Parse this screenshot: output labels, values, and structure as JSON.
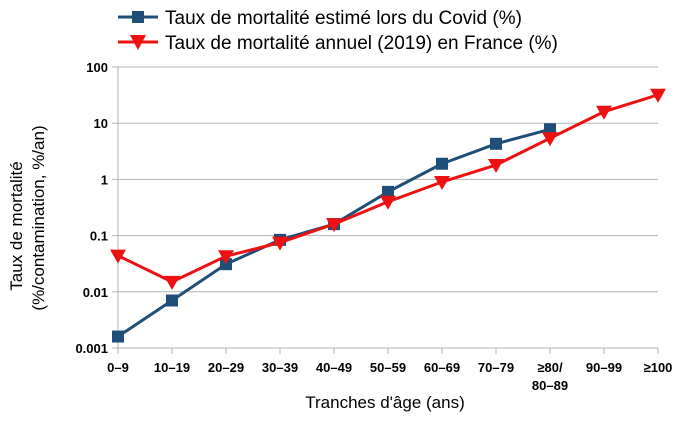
{
  "chart_data": {
    "type": "line",
    "xlabel": "Tranches d'âge (ans)",
    "ylabel_line1": "Taux de mortalité",
    "ylabel_line2": "(%/contamination, %/an)",
    "yscale": "log",
    "ylim": [
      0.001,
      100
    ],
    "y_ticks": [
      "0.001",
      "0.01",
      "0.1",
      "1",
      "10",
      "100"
    ],
    "categories": [
      "0–9",
      "10–19",
      "20–29",
      "30–39",
      "40–49",
      "50–59",
      "60–69",
      "70–79",
      "≥80/\n80–89",
      "90–99",
      "≥100"
    ],
    "grid": "horizontal",
    "legend_position": "top",
    "series": [
      {
        "name": "Taux de mortalité estimé lors du Covid (%)",
        "color": "#1f4e79",
        "marker": "square",
        "values": [
          0.0016,
          0.007,
          0.031,
          0.084,
          0.16,
          0.6,
          1.9,
          4.3,
          7.8,
          null,
          null
        ]
      },
      {
        "name": "Taux de mortalité annuel (2019) en France (%)",
        "color": "#ee1111",
        "marker": "triangle-down",
        "values": [
          0.044,
          0.015,
          0.043,
          0.075,
          0.16,
          0.4,
          0.9,
          1.8,
          5.4,
          16,
          32
        ]
      }
    ]
  }
}
